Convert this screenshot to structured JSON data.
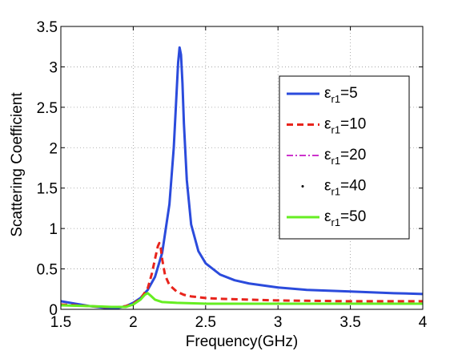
{
  "chart_data": {
    "type": "line",
    "title": "",
    "xlabel": "Frequency(GHz)",
    "ylabel": "Scattering Coefficient",
    "xlim": [
      1.5,
      4
    ],
    "ylim": [
      0,
      3.5
    ],
    "xticks": [
      1.5,
      2,
      2.5,
      3,
      3.5,
      4
    ],
    "yticks": [
      0,
      0.5,
      1,
      1.5,
      2,
      2.5,
      3,
      3.5
    ],
    "xtick_labels": [
      "1.5",
      "2",
      "2.5",
      "3",
      "3.5",
      "4"
    ],
    "ytick_labels": [
      "0",
      "0.5",
      "1",
      "1.5",
      "2",
      "2.5",
      "3",
      "3.5"
    ],
    "grid": true,
    "legend_position": "top-right",
    "series": [
      {
        "name": "ε_r1=5",
        "name_main": "ε",
        "name_sub": "r1",
        "name_tail": "=5",
        "color": "#2b4bdc",
        "style": "solid",
        "x": [
          1.5,
          1.6,
          1.7,
          1.8,
          1.85,
          1.9,
          1.95,
          2.0,
          2.05,
          2.1,
          2.15,
          2.2,
          2.25,
          2.28,
          2.3,
          2.31,
          2.32,
          2.33,
          2.34,
          2.35,
          2.37,
          2.4,
          2.45,
          2.5,
          2.6,
          2.7,
          2.8,
          3.0,
          3.2,
          3.5,
          3.8,
          4.0
        ],
        "y": [
          0.1,
          0.07,
          0.04,
          0.02,
          0.02,
          0.02,
          0.04,
          0.08,
          0.14,
          0.24,
          0.4,
          0.7,
          1.3,
          2.0,
          2.7,
          3.05,
          3.24,
          3.15,
          2.8,
          2.3,
          1.6,
          1.05,
          0.72,
          0.57,
          0.43,
          0.36,
          0.32,
          0.27,
          0.24,
          0.22,
          0.2,
          0.19
        ]
      },
      {
        "name": "ε_r1=10",
        "name_main": "ε",
        "name_sub": "r1",
        "name_tail": "=10",
        "color": "#e8241c",
        "style": "dashed",
        "x": [
          1.5,
          1.7,
          1.8,
          1.9,
          1.95,
          2.0,
          2.05,
          2.1,
          2.13,
          2.15,
          2.17,
          2.18,
          2.19,
          2.2,
          2.22,
          2.25,
          2.3,
          2.35,
          2.4,
          2.5,
          2.6,
          2.8,
          3.0,
          3.5,
          4.0
        ],
        "y": [
          0.06,
          0.04,
          0.03,
          0.03,
          0.04,
          0.07,
          0.13,
          0.26,
          0.45,
          0.62,
          0.78,
          0.82,
          0.76,
          0.62,
          0.42,
          0.3,
          0.22,
          0.18,
          0.16,
          0.14,
          0.13,
          0.12,
          0.11,
          0.1,
          0.1
        ]
      },
      {
        "name": "ε_r1=20",
        "name_main": "ε",
        "name_sub": "r1",
        "name_tail": "=20",
        "color": "#cc33cc",
        "style": "dashdot",
        "x": [
          1.5,
          1.7,
          1.85,
          1.95,
          2.0,
          2.05,
          2.08,
          2.1,
          2.12,
          2.15,
          2.2,
          2.3,
          2.5,
          3.0,
          3.5,
          4.0
        ],
        "y": [
          0.05,
          0.04,
          0.03,
          0.03,
          0.06,
          0.12,
          0.18,
          0.2,
          0.17,
          0.12,
          0.09,
          0.08,
          0.07,
          0.07,
          0.07,
          0.07
        ]
      },
      {
        "name": "ε_r1=40",
        "name_main": "ε",
        "name_sub": "r1",
        "name_tail": "=40",
        "color": "#000000",
        "style": "dotted",
        "x": [
          1.5,
          1.7,
          1.85,
          1.95,
          2.0,
          2.05,
          2.08,
          2.1,
          2.12,
          2.15,
          2.2,
          2.3,
          2.5,
          3.0,
          3.5,
          4.0
        ],
        "y": [
          0.05,
          0.04,
          0.03,
          0.03,
          0.06,
          0.12,
          0.18,
          0.2,
          0.17,
          0.12,
          0.09,
          0.08,
          0.07,
          0.07,
          0.07,
          0.07
        ]
      },
      {
        "name": "ε_r1=50",
        "name_main": "ε",
        "name_sub": "r1",
        "name_tail": "=50",
        "color": "#66ee22",
        "style": "solid",
        "x": [
          1.5,
          1.7,
          1.85,
          1.95,
          2.0,
          2.05,
          2.08,
          2.1,
          2.12,
          2.15,
          2.2,
          2.3,
          2.5,
          3.0,
          3.5,
          4.0
        ],
        "y": [
          0.05,
          0.04,
          0.03,
          0.03,
          0.06,
          0.12,
          0.18,
          0.2,
          0.17,
          0.12,
          0.09,
          0.08,
          0.07,
          0.07,
          0.07,
          0.07
        ]
      }
    ]
  }
}
